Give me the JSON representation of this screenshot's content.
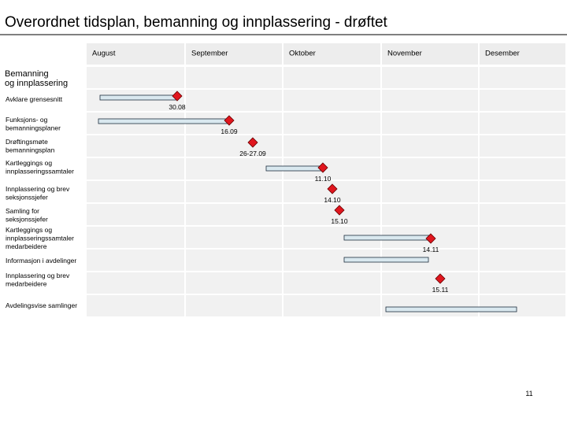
{
  "header": {
    "title": "Overordnet tidsplan, bemanning og innplassering - drøftet"
  },
  "months": [
    "August",
    "September",
    "Oktober",
    "November",
    "Desember"
  ],
  "section": [
    "Bemanning",
    "og innplassering"
  ],
  "tasks": [
    {
      "label": [
        "Avklare grensesnitt"
      ],
      "date": "30.08"
    },
    {
      "label": [
        "Funksjons- og",
        "bemanningsplaner"
      ],
      "date": "16.09"
    },
    {
      "label": [
        "Drøftingsmøte",
        "bemanningsplan"
      ],
      "date": "26-27.09"
    },
    {
      "label": [
        "Kartleggings og",
        "innplasseringssamtaler"
      ],
      "date": "11.10"
    },
    {
      "label": [
        "Innplassering og brev",
        "seksjonssjefer"
      ],
      "date": "14.10"
    },
    {
      "label": [
        "Samling for",
        "seksjonssjefer"
      ],
      "date": "15.10"
    },
    {
      "label": [
        "Kartleggings og",
        "innplasseringssamtaler",
        "medarbeidere"
      ],
      "date": "14.11"
    },
    {
      "label": [
        "Informasjon i avdelinger"
      ]
    },
    {
      "label": [
        "Innplassering og brev",
        "medarbeidere"
      ],
      "date": "15.11"
    },
    {
      "label": [
        "Avdelingsvise samlinger"
      ]
    }
  ],
  "page_number": "11"
}
